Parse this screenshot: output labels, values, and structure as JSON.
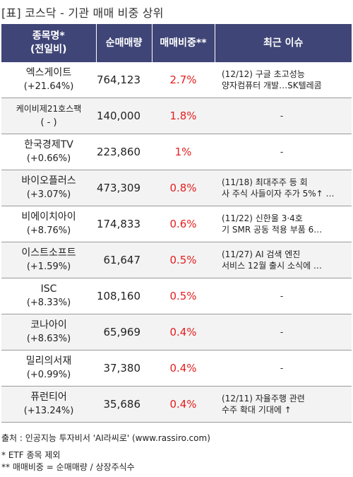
{
  "title": "[표] 코스닥 - 기관 매매 비중 상위",
  "columns": {
    "name": [
      "종목명*",
      "(전일비)"
    ],
    "volume": "순매매량",
    "ratio": "매매비중**",
    "issue": "최근 이슈"
  },
  "rows": [
    {
      "name": "엑스게이트",
      "change": "(+21.64%)",
      "volume": "764,123",
      "ratio": "2.7%",
      "issue": [
        "(12/12) 구글 초고성능",
        "양자컴퓨터 개발…SK텔레콤"
      ]
    },
    {
      "name": "케이비제21호스팩",
      "change": "( - )",
      "volume": "140,000",
      "ratio": "1.8%",
      "issue": [
        "-"
      ]
    },
    {
      "name": "한국경제TV",
      "change": "(+0.66%)",
      "volume": "223,860",
      "ratio": "1%",
      "issue": [
        "-"
      ]
    },
    {
      "name": "바이오플러스",
      "change": "(+3.07%)",
      "volume": "473,309",
      "ratio": "0.8%",
      "issue": [
        "(11/18) 최대주주 등 회",
        "사 주식 사들이자 주가 5%↑ …"
      ]
    },
    {
      "name": "비에이치아이",
      "change": "(+8.76%)",
      "volume": "174,833",
      "ratio": "0.6%",
      "issue": [
        "(11/22) 신한울 3·4호",
        "기 SMR 공동 적용 부품 6…"
      ]
    },
    {
      "name": "이스트소프트",
      "change": "(+1.59%)",
      "volume": "61,647",
      "ratio": "0.5%",
      "issue": [
        "(11/27) AI 검색 엔진",
        " 서비스 12월 출시 소식에 …"
      ]
    },
    {
      "name": "ISC",
      "change": "(+8.33%)",
      "volume": "108,160",
      "ratio": "0.5%",
      "issue": [
        "-"
      ]
    },
    {
      "name": "코나아이",
      "change": "(+8.63%)",
      "volume": "65,969",
      "ratio": "0.4%",
      "issue": [
        "-"
      ]
    },
    {
      "name": "밀리의서재",
      "change": "(+0.99%)",
      "volume": "37,380",
      "ratio": "0.4%",
      "issue": [
        "-"
      ]
    },
    {
      "name": "퓨런티어",
      "change": "(+13.24%)",
      "volume": "35,686",
      "ratio": "0.4%",
      "issue": [
        "(12/11) 자율주행 관련",
        "수주 확대 기대에 ↑"
      ]
    }
  ],
  "footer": {
    "source": "출처 : 인공지능 투자비서 'AI라씨로' (www.rassiro.com)",
    "note1": "* ETF 종목 제외",
    "note2": "** 매매비중 = 순매매량 / 상장주식수"
  },
  "colors": {
    "header_bg": "#3f4576",
    "ratio_text": "#e41e1e"
  }
}
